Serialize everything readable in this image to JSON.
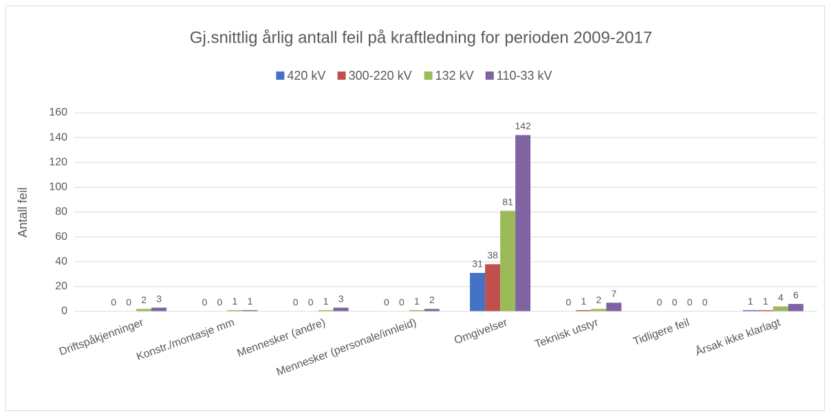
{
  "chart_data": {
    "type": "bar",
    "title": "Gj.snittlig årlig antall feil på kraftledning for perioden 2009-2017",
    "y_label": "Antall feil",
    "categories": [
      "Driftspåkjenninger",
      "Konstr./montasje mm",
      "Mennesker (andre)",
      "Mennesker (personale/innleid)",
      "Omgivelser",
      "Teknisk utstyr",
      "Tidligere feil",
      "Årsak ikke klarlagt"
    ],
    "series": [
      {
        "name": "420 kV",
        "color": "#4472c4",
        "values": [
          0,
          0,
          0,
          0,
          31,
          0,
          0,
          1
        ]
      },
      {
        "name": "300-220 kV",
        "color": "#c0504d",
        "values": [
          0,
          0,
          0,
          0,
          38,
          1,
          0,
          1
        ]
      },
      {
        "name": "132 kV",
        "color": "#9bbb59",
        "values": [
          2,
          1,
          1,
          1,
          81,
          2,
          0,
          4
        ]
      },
      {
        "name": "110-33 kV",
        "color": "#8064a2",
        "values": [
          3,
          1,
          3,
          2,
          142,
          7,
          0,
          6
        ]
      }
    ],
    "ylim": [
      0,
      160
    ],
    "yticks": [
      0,
      20,
      40,
      60,
      80,
      100,
      120,
      140,
      160
    ],
    "grid": true,
    "legend": "top"
  }
}
